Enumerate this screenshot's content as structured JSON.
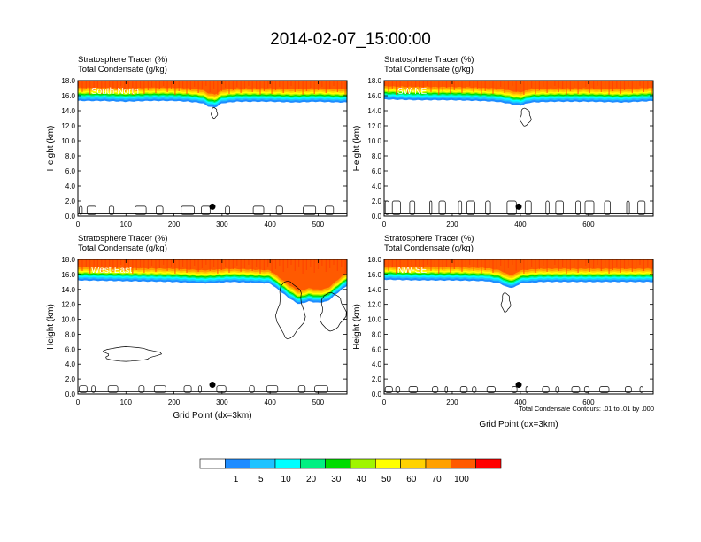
{
  "title": "2014-02-07_15:00:00",
  "footnote": "Total Condensate Contours: .01 to .01 by .000",
  "colorbar": {
    "colors": [
      "#ffffff",
      "#1e8cff",
      "#1ec3ff",
      "#00ffff",
      "#00f082",
      "#00dc00",
      "#a0f500",
      "#ffff00",
      "#ffd200",
      "#ffa000",
      "#ff5a00",
      "#ff0000"
    ],
    "labels": [
      "1",
      "5",
      "10",
      "20",
      "30",
      "40",
      "50",
      "60",
      "70",
      "100"
    ]
  },
  "chart_data": [
    {
      "type": "heatmap",
      "name": "South-North",
      "header": [
        "Stratosphere Tracer   (%)",
        "Total Condensate   (g/kg)"
      ],
      "xlabel": "",
      "ylabel": "Height (km)",
      "xlim": [
        0,
        560
      ],
      "ylim": [
        0,
        18
      ],
      "xticks": [
        "0",
        "100",
        "200",
        "300",
        "400",
        "500"
      ],
      "yticks": [
        "0.0",
        "2.0",
        "4.0",
        "6.0",
        "8.0",
        "10.0",
        "12.0",
        "14.0",
        "16.0",
        "18.0"
      ],
      "marker_x": 280,
      "tracer_top_height_km": [
        [
          0,
          15.3
        ],
        [
          50,
          15.3
        ],
        [
          100,
          15.2
        ],
        [
          150,
          15.3
        ],
        [
          200,
          15.3
        ],
        [
          230,
          15.2
        ],
        [
          260,
          15.0
        ],
        [
          270,
          14.6
        ],
        [
          285,
          14.4
        ],
        [
          300,
          15.0
        ],
        [
          330,
          15.2
        ],
        [
          400,
          15.2
        ],
        [
          450,
          15.1
        ],
        [
          500,
          15.2
        ],
        [
          540,
          15.1
        ],
        [
          560,
          15.1
        ]
      ],
      "condensate_contours_km": [
        {
          "x": [
            278,
            290
          ],
          "y": [
            13.0,
            14.4
          ]
        },
        {
          "x": [
            0,
            560
          ],
          "y": [
            0.2,
            1.3
          ]
        }
      ]
    },
    {
      "type": "heatmap",
      "name": "SW-NE",
      "header": [
        "Stratosphere Tracer   (%)",
        "Total Condensate   (g/kg)"
      ],
      "xlabel": "",
      "ylabel": "Height (km)",
      "xlim": [
        0,
        790
      ],
      "ylim": [
        0,
        18
      ],
      "xticks": [
        "0",
        "200",
        "400",
        "600"
      ],
      "yticks": [
        "0.0",
        "2.0",
        "4.0",
        "6.0",
        "8.0",
        "10.0",
        "12.0",
        "14.0",
        "16.0",
        "18.0"
      ],
      "marker_x": 395,
      "tracer_top_height_km": [
        [
          0,
          15.5
        ],
        [
          100,
          15.4
        ],
        [
          200,
          15.4
        ],
        [
          280,
          15.3
        ],
        [
          330,
          15.2
        ],
        [
          360,
          15.0
        ],
        [
          380,
          14.8
        ],
        [
          400,
          14.7
        ],
        [
          430,
          15.1
        ],
        [
          500,
          15.2
        ],
        [
          600,
          15.2
        ],
        [
          700,
          15.1
        ],
        [
          790,
          15.3
        ]
      ],
      "condensate_contours_km": [
        {
          "x": [
            400,
            430
          ],
          "y": [
            12.0,
            14.3
          ]
        },
        {
          "x": [
            0,
            790
          ],
          "y": [
            0.2,
            2.0
          ]
        }
      ]
    },
    {
      "type": "heatmap",
      "name": "West-East",
      "header": [
        "Stratosphere Tracer   (%)",
        "Total Condensate   (g/kg)"
      ],
      "xlabel": "Grid Point (dx=3km)",
      "ylabel": "Height (km)",
      "xlim": [
        0,
        560
      ],
      "ylim": [
        0,
        18
      ],
      "xticks": [
        "0",
        "100",
        "200",
        "300",
        "400",
        "500"
      ],
      "yticks": [
        "0.0",
        "2.0",
        "4.0",
        "6.0",
        "8.0",
        "10.0",
        "12.0",
        "14.0",
        "16.0",
        "18.0"
      ],
      "marker_x": 280,
      "tracer_top_height_km": [
        [
          0,
          15.2
        ],
        [
          100,
          15.1
        ],
        [
          200,
          15.0
        ],
        [
          260,
          14.8
        ],
        [
          320,
          15.0
        ],
        [
          400,
          14.8
        ],
        [
          420,
          13.8
        ],
        [
          440,
          12.8
        ],
        [
          460,
          12.0
        ],
        [
          480,
          12.4
        ],
        [
          500,
          12.2
        ],
        [
          520,
          12.4
        ],
        [
          540,
          13.5
        ],
        [
          560,
          14.5
        ]
      ],
      "condensate_contours_km": [
        {
          "x": [
            415,
            470
          ],
          "y": [
            7.5,
            15.0
          ]
        },
        {
          "x": [
            505,
            555
          ],
          "y": [
            8.5,
            13.5
          ]
        },
        {
          "x": [
            55,
            165
          ],
          "y": [
            4.4,
            6.3
          ]
        },
        {
          "x": [
            0,
            560
          ],
          "y": [
            0.2,
            1.1
          ]
        }
      ]
    },
    {
      "type": "heatmap",
      "name": "NW-SE",
      "header": [
        "Stratosphere Tracer   (%)",
        "Total Condensate   (g/kg)"
      ],
      "xlabel": "Grid Point (dx=3km)",
      "ylabel": "Height (km)",
      "xlim": [
        0,
        790
      ],
      "ylim": [
        0,
        18
      ],
      "xticks": [
        "0",
        "200",
        "400",
        "600"
      ],
      "yticks": [
        "0.0",
        "2.0",
        "4.0",
        "6.0",
        "8.0",
        "10.0",
        "12.0",
        "14.0",
        "16.0",
        "18.0"
      ],
      "marker_x": 395,
      "tracer_top_height_km": [
        [
          0,
          15.3
        ],
        [
          100,
          15.2
        ],
        [
          200,
          15.2
        ],
        [
          300,
          15.1
        ],
        [
          340,
          14.8
        ],
        [
          360,
          14.3
        ],
        [
          380,
          14.2
        ],
        [
          400,
          14.8
        ],
        [
          460,
          15.0
        ],
        [
          560,
          15.0
        ],
        [
          660,
          15.0
        ],
        [
          790,
          15.0
        ]
      ],
      "condensate_contours_km": [
        {
          "x": [
            345,
            370
          ],
          "y": [
            11.0,
            13.5
          ]
        },
        {
          "x": [
            0,
            790
          ],
          "y": [
            0.2,
            1.0
          ]
        }
      ]
    }
  ]
}
